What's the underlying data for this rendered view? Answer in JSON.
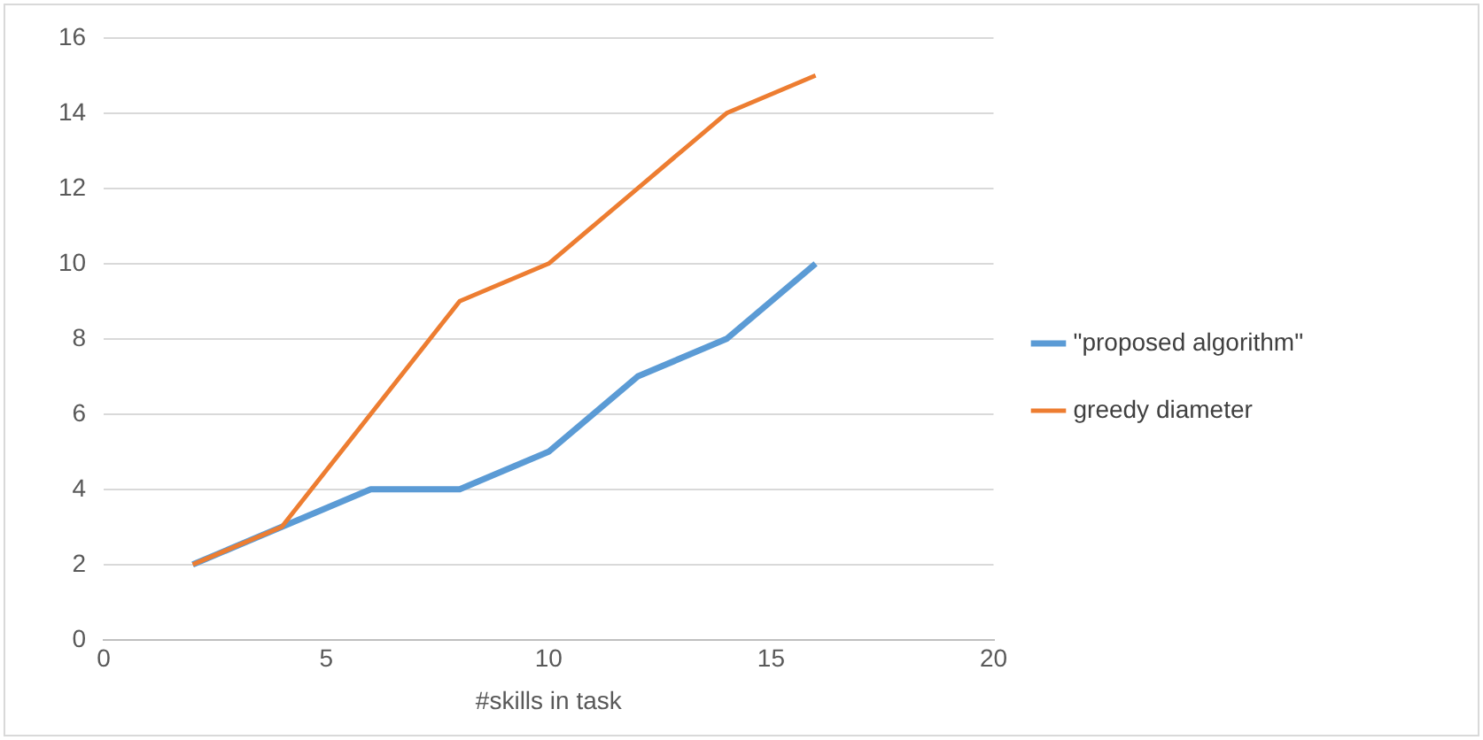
{
  "chart_data": {
    "type": "line",
    "xlabel": "#skills in task",
    "x": [
      2,
      3,
      4,
      5,
      6,
      7,
      8,
      9,
      10,
      11,
      12,
      13,
      14,
      15,
      16
    ],
    "series": [
      {
        "name": "\"proposed algorithm\"",
        "color": "#5b9bd5",
        "values": [
          2,
          2.5,
          3,
          3.5,
          4,
          4,
          4,
          4.5,
          5,
          6,
          7,
          7.5,
          8,
          9,
          10
        ]
      },
      {
        "name": "greedy diameter",
        "color": "#ed7d31",
        "values": [
          2,
          2.5,
          3,
          4.5,
          6,
          7.5,
          9,
          9.5,
          10,
          11,
          12,
          13,
          14,
          14.5,
          15
        ]
      }
    ],
    "xlim": [
      0,
      20
    ],
    "xticks": [
      0,
      5,
      10,
      15,
      20
    ],
    "ylim": [
      0,
      16
    ],
    "yticks": [
      0,
      2,
      4,
      6,
      8,
      10,
      12,
      14,
      16
    ],
    "grid": "y",
    "legend": "right",
    "marker": "none",
    "line_style": "solid"
  }
}
